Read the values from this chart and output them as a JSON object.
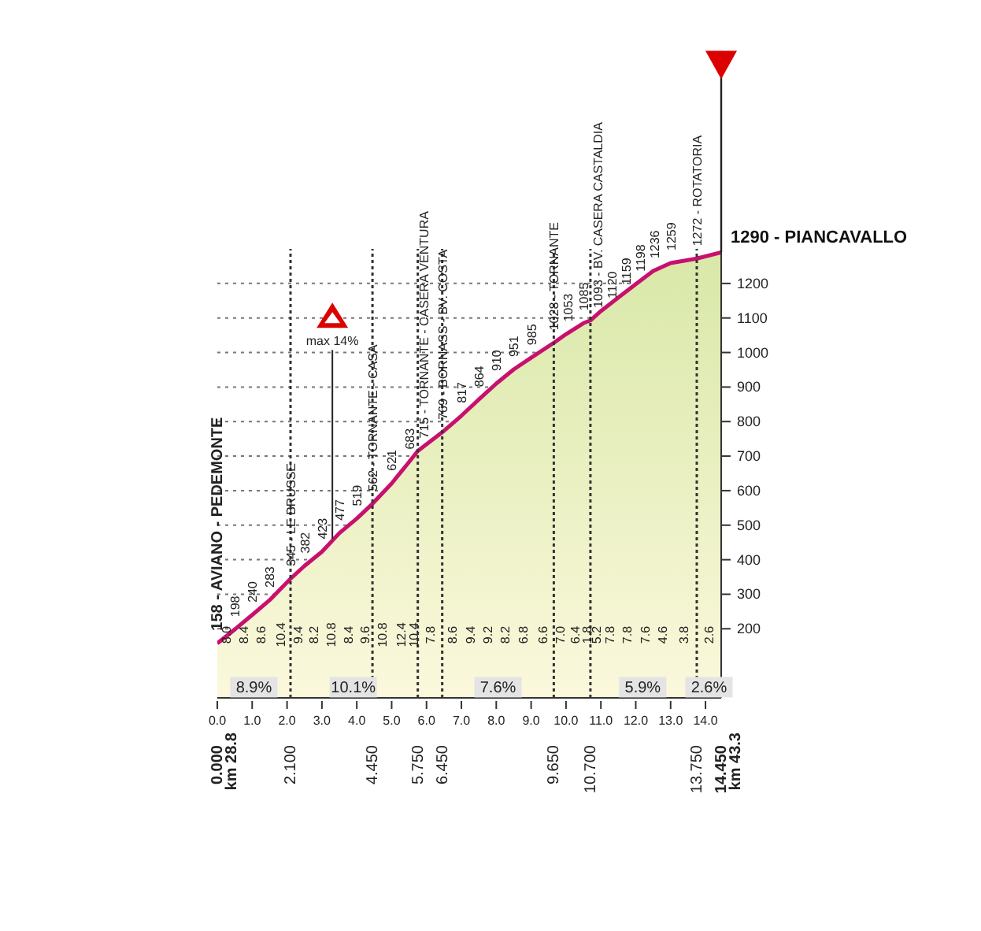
{
  "chart_data": {
    "type": "area",
    "x": [
      0,
      0.5,
      1,
      1.5,
      2.1,
      2.5,
      3,
      3.5,
      4,
      4.45,
      5,
      5.5,
      5.75,
      6.45,
      7,
      7.5,
      8,
      8.5,
      9,
      9.65,
      10,
      10.5,
      10.7,
      11,
      11.5,
      12,
      12.5,
      13,
      13.75,
      14.45
    ],
    "series": [
      {
        "color": "#c8106e",
        "values": [
          158,
          198,
          240,
          283,
          345,
          382,
          423,
          477,
          519,
          562,
          621,
          683,
          715,
          769,
          817,
          864,
          910,
          951,
          985,
          1028,
          1053,
          1085,
          1093,
          1120,
          1159,
          1198,
          1236,
          1259,
          1272,
          1290
        ],
        "value_labels": [
          "158 - AVIANO - PEDEMONTE",
          "198",
          "240",
          "283",
          "345 - LE BRUSSE",
          "382",
          "423",
          "477",
          "519",
          "562 - TORNANTE - CASA",
          "621",
          "683",
          "715 - TORNANTE - CASERA VENTURA",
          "769 - BORNASS - BV. COSTA",
          "817",
          "864",
          "910",
          "951",
          "985",
          "1028 - TORNANTE",
          "1053",
          "1085",
          "1093 - BV. CASERA CASTALDIA",
          "1120",
          "1159",
          "1198",
          "1236",
          "1259",
          "1272 - ROTATORIA",
          "1290 - PIANCAVALLO"
        ]
      }
    ],
    "xlim": [
      0,
      14.45
    ],
    "xticks": [
      {
        "value": 0,
        "label": "0.0"
      },
      {
        "value": 1,
        "label": "1.0"
      },
      {
        "value": 2,
        "label": "2.0"
      },
      {
        "value": 3,
        "label": "3.0"
      },
      {
        "value": 4,
        "label": "4.0"
      },
      {
        "value": 5,
        "label": "5.0"
      },
      {
        "value": 6,
        "label": "6.0"
      },
      {
        "value": 7,
        "label": "7.0"
      },
      {
        "value": 8,
        "label": "8.0"
      },
      {
        "value": 9,
        "label": "9.0"
      },
      {
        "value": 10,
        "label": "10.0"
      },
      {
        "value": 11,
        "label": "11.0"
      },
      {
        "value": 12,
        "label": "12.0"
      },
      {
        "value": 13,
        "label": "13.0"
      },
      {
        "value": 14,
        "label": "14.0"
      }
    ],
    "x2lim": [
      0,
      14.45
    ],
    "x2ticks": [
      {
        "value": 0,
        "label": "0.000"
      },
      {
        "value": 2.1,
        "label": "2.100"
      },
      {
        "value": 4.45,
        "label": "4.450"
      },
      {
        "value": 5.75,
        "label": "5.750"
      },
      {
        "value": 6.45,
        "label": "6.450"
      },
      {
        "value": 9.65,
        "label": "9.650"
      },
      {
        "value": 10.7,
        "label": "10.700"
      },
      {
        "value": 13.75,
        "label": "13.750"
      },
      {
        "value": 14.45,
        "label": "14.450"
      }
    ],
    "ylim": [
      0,
      1300
    ],
    "yticks": [
      200,
      300,
      400,
      500,
      600,
      700,
      800,
      900,
      1000,
      1100,
      1200
    ],
    "grid": "y",
    "ref_lines": [
      {
        "axis": "x",
        "value": 2.1,
        "line_style": "dotted",
        "color": "#333333"
      },
      {
        "axis": "x",
        "value": 4.45,
        "line_style": "dotted",
        "color": "#333333"
      },
      {
        "axis": "x",
        "value": 5.75,
        "line_style": "dotted",
        "color": "#333333"
      },
      {
        "axis": "x",
        "value": 6.45,
        "line_style": "dotted",
        "color": "#333333"
      },
      {
        "axis": "x",
        "value": 9.65,
        "line_style": "dotted",
        "color": "#333333"
      },
      {
        "axis": "x",
        "value": 10.7,
        "line_style": "dotted",
        "color": "#333333"
      },
      {
        "axis": "x",
        "value": 13.75,
        "line_style": "dotted",
        "color": "#333333"
      }
    ],
    "annotations": [
      {
        "text": "max 14%",
        "x": 3.3,
        "y": 460
      },
      "8.0",
      "8.4",
      "8.6",
      "10.4",
      "9.4",
      "8.2",
      "10.8",
      "8.4",
      "9.6",
      "10.8",
      "12.4",
      "10.4",
      "7.8",
      "8.6",
      "9.4",
      "9.2",
      "8.2",
      "6.8",
      "6.6",
      "7.0",
      "6.4",
      "1.8",
      "5.2",
      "7.8",
      "7.8",
      "7.6",
      "4.6",
      "3.8",
      "2.6",
      {
        "text": "8.9%",
        "x": 1.05,
        "y": 15
      },
      {
        "text": "10.1%",
        "x": 3.9,
        "y": 15
      },
      {
        "text": "7.6%",
        "x": 8.05,
        "y": 15
      },
      {
        "text": "5.9%",
        "x": 12.2,
        "y": 15
      },
      {
        "text": "2.6%",
        "x": 14.1,
        "y": 15
      },
      "km 28.8",
      "km 43.3"
    ]
  }
}
